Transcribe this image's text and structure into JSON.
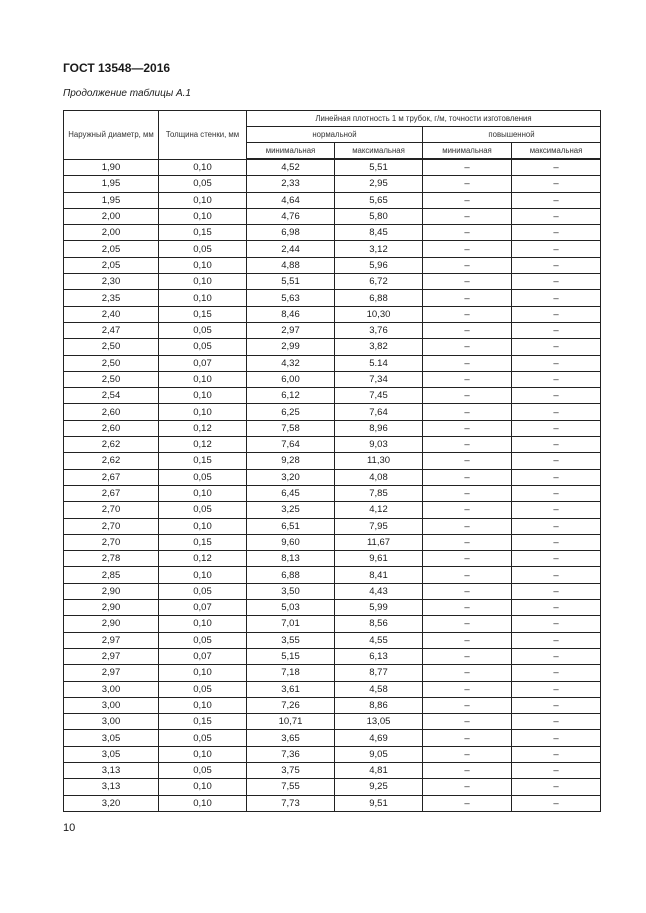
{
  "header": {
    "title": "ГОСТ 13548—2016",
    "caption": "Продолжение таблицы А.1"
  },
  "table": {
    "headers": {
      "outer_diameter": "Наружный диаметр, мм",
      "wall_thickness": "Толщина стенки, мм",
      "linear_density": "Линейная плотность 1 м трубок, г/м,  точности изготовления",
      "normal": "нормальной",
      "increased": "повышенной",
      "min1": "минимальная",
      "max1": "максимальная",
      "min2": "минимальная",
      "max2": "максимальная"
    },
    "rows": [
      [
        "1,90",
        "0,10",
        "4,52",
        "5,51",
        "–",
        "–"
      ],
      [
        "1,95",
        "0,05",
        "2,33",
        "2,95",
        "–",
        "–"
      ],
      [
        "1,95",
        "0,10",
        "4,64",
        "5,65",
        "–",
        "–"
      ],
      [
        "2,00",
        "0,10",
        "4,76",
        "5,80",
        "–",
        "–"
      ],
      [
        "2,00",
        "0,15",
        "6,98",
        "8,45",
        "–",
        "–"
      ],
      [
        "2,05",
        "0,05",
        "2,44",
        "3,12",
        "–",
        "–"
      ],
      [
        "2,05",
        "0,10",
        "4,88",
        "5,96",
        "–",
        "–"
      ],
      [
        "2,30",
        "0,10",
        "5,51",
        "6,72",
        "–",
        "–"
      ],
      [
        "2,35",
        "0,10",
        "5,63",
        "6,88",
        "–",
        "–"
      ],
      [
        "2,40",
        "0,15",
        "8,46",
        "10,30",
        "–",
        "–"
      ],
      [
        "2,47",
        "0,05",
        "2,97",
        "3,76",
        "–",
        "–"
      ],
      [
        "2,50",
        "0,05",
        "2,99",
        "3,82",
        "–",
        "–"
      ],
      [
        "2,50",
        "0,07",
        "4,32",
        "5.14",
        "–",
        "–"
      ],
      [
        "2,50",
        "0,10",
        "6,00",
        "7,34",
        "–",
        "–"
      ],
      [
        "2,54",
        "0,10",
        "6,12",
        "7,45",
        "–",
        "–"
      ],
      [
        "2,60",
        "0,10",
        "6,25",
        "7,64",
        "–",
        "–"
      ],
      [
        "2,60",
        "0,12",
        "7,58",
        "8,96",
        "–",
        "–"
      ],
      [
        "2,62",
        "0,12",
        "7,64",
        "9,03",
        "–",
        "–"
      ],
      [
        "2,62",
        "0,15",
        "9,28",
        "11,30",
        "–",
        "–"
      ],
      [
        "2,67",
        "0,05",
        "3,20",
        "4,08",
        "–",
        "–"
      ],
      [
        "2,67",
        "0,10",
        "6,45",
        "7,85",
        "–",
        "–"
      ],
      [
        "2,70",
        "0,05",
        "3,25",
        "4,12",
        "–",
        "–"
      ],
      [
        "2,70",
        "0,10",
        "6,51",
        "7,95",
        "–",
        "–"
      ],
      [
        "2,70",
        "0,15",
        "9,60",
        "11,67",
        "–",
        "–"
      ],
      [
        "2,78",
        "0,12",
        "8,13",
        "9,61",
        "–",
        "–"
      ],
      [
        "2,85",
        "0,10",
        "6,88",
        "8,41",
        "–",
        "–"
      ],
      [
        "2,90",
        "0,05",
        "3,50",
        "4,43",
        "–",
        "–"
      ],
      [
        "2,90",
        "0,07",
        "5,03",
        "5,99",
        "–",
        "–"
      ],
      [
        "2,90",
        "0,10",
        "7,01",
        "8,56",
        "–",
        "–"
      ],
      [
        "2,97",
        "0,05",
        "3,55",
        "4,55",
        "–",
        "–"
      ],
      [
        "2,97",
        "0,07",
        "5,15",
        "6,13",
        "–",
        "–"
      ],
      [
        "2,97",
        "0,10",
        "7,18",
        "8,77",
        "–",
        "–"
      ],
      [
        "3,00",
        "0,05",
        "3,61",
        "4,58",
        "–",
        "–"
      ],
      [
        "3,00",
        "0,10",
        "7,26",
        "8,86",
        "–",
        "–"
      ],
      [
        "3,00",
        "0,15",
        "10,71",
        "13,05",
        "–",
        "–"
      ],
      [
        "3,05",
        "0,05",
        "3,65",
        "4,69",
        "–",
        "–"
      ],
      [
        "3,05",
        "0,10",
        "7,36",
        "9,05",
        "–",
        "–"
      ],
      [
        "3,13",
        "0,05",
        "3,75",
        "4,81",
        "–",
        "–"
      ],
      [
        "3,13",
        "0,10",
        "7,55",
        "9,25",
        "–",
        "–"
      ],
      [
        "3,20",
        "0,10",
        "7,73",
        "9,51",
        "–",
        "–"
      ]
    ]
  },
  "footer": {
    "page_number": "10"
  }
}
